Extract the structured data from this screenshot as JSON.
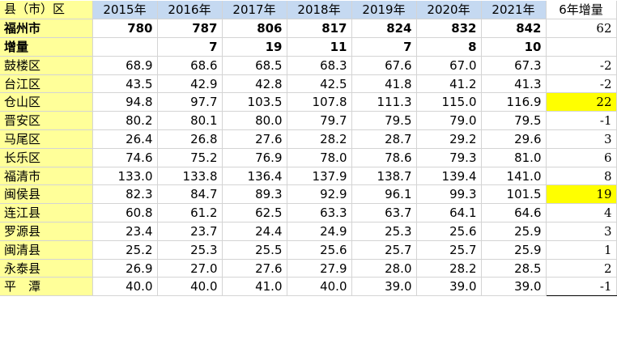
{
  "header": {
    "first": "县（市）区",
    "years": [
      "2015年",
      "2016年",
      "2017年",
      "2018年",
      "2019年",
      "2020年",
      "2021年"
    ],
    "increase": "6年增量"
  },
  "rows": [
    {
      "name": "福州市",
      "values": [
        "780",
        "787",
        "806",
        "817",
        "824",
        "832",
        "842"
      ],
      "inc": "62",
      "type": "total"
    },
    {
      "name": "增量",
      "values": [
        "",
        "7",
        "19",
        "11",
        "7",
        "8",
        "10"
      ],
      "inc": "",
      "type": "inc"
    },
    {
      "name": "鼓楼区",
      "values": [
        "68.9",
        "68.6",
        "68.5",
        "68.3",
        "67.6",
        "67.0",
        "67.3"
      ],
      "inc": "-2",
      "type": "district"
    },
    {
      "name": "台江区",
      "values": [
        "43.5",
        "42.9",
        "42.8",
        "42.5",
        "41.8",
        "41.2",
        "41.3"
      ],
      "inc": "-2",
      "type": "district"
    },
    {
      "name": "仓山区",
      "values": [
        "94.8",
        "97.7",
        "103.5",
        "107.8",
        "111.3",
        "115.0",
        "116.9"
      ],
      "inc": "22",
      "type": "district",
      "highlight": true
    },
    {
      "name": "晋安区",
      "values": [
        "80.2",
        "80.1",
        "80.0",
        "79.7",
        "79.5",
        "79.0",
        "79.5"
      ],
      "inc": "-1",
      "type": "district"
    },
    {
      "name": "马尾区",
      "values": [
        "26.4",
        "26.8",
        "27.6",
        "28.2",
        "28.7",
        "29.2",
        "29.6"
      ],
      "inc": "3",
      "type": "district"
    },
    {
      "name": "长乐区",
      "values": [
        "74.6",
        "75.2",
        "76.9",
        "78.0",
        "78.6",
        "79.3",
        "81.0"
      ],
      "inc": "6",
      "type": "district"
    },
    {
      "name": "福清市",
      "values": [
        "133.0",
        "133.8",
        "136.4",
        "137.9",
        "138.7",
        "139.4",
        "141.0"
      ],
      "inc": "8",
      "type": "district"
    },
    {
      "name": "闽侯县",
      "values": [
        "82.3",
        "84.7",
        "89.3",
        "92.9",
        "96.1",
        "99.3",
        "101.5"
      ],
      "inc": "19",
      "type": "district",
      "highlight": true
    },
    {
      "name": "连江县",
      "values": [
        "60.8",
        "61.2",
        "62.5",
        "63.3",
        "63.7",
        "64.1",
        "64.6"
      ],
      "inc": "4",
      "type": "district"
    },
    {
      "name": "罗源县",
      "values": [
        "23.4",
        "23.7",
        "24.4",
        "24.9",
        "25.3",
        "25.6",
        "25.9"
      ],
      "inc": "3",
      "type": "district"
    },
    {
      "name": "闽清县",
      "values": [
        "25.2",
        "25.3",
        "25.5",
        "25.6",
        "25.7",
        "25.7",
        "25.9"
      ],
      "inc": "1",
      "type": "district"
    },
    {
      "name": "永泰县",
      "values": [
        "26.9",
        "27.0",
        "27.6",
        "27.9",
        "28.0",
        "28.2",
        "28.5"
      ],
      "inc": "2",
      "type": "district"
    },
    {
      "name": "平　潭",
      "values": [
        "40.0",
        "40.0",
        "41.0",
        "40.0",
        "39.0",
        "39.0",
        "39.0"
      ],
      "inc": "-1",
      "type": "district"
    }
  ],
  "colors": {
    "label_column": "#ffff99",
    "year_header": "#c5d9f1",
    "highlight": "#ffff00",
    "gridline": "#d4d4d4"
  }
}
